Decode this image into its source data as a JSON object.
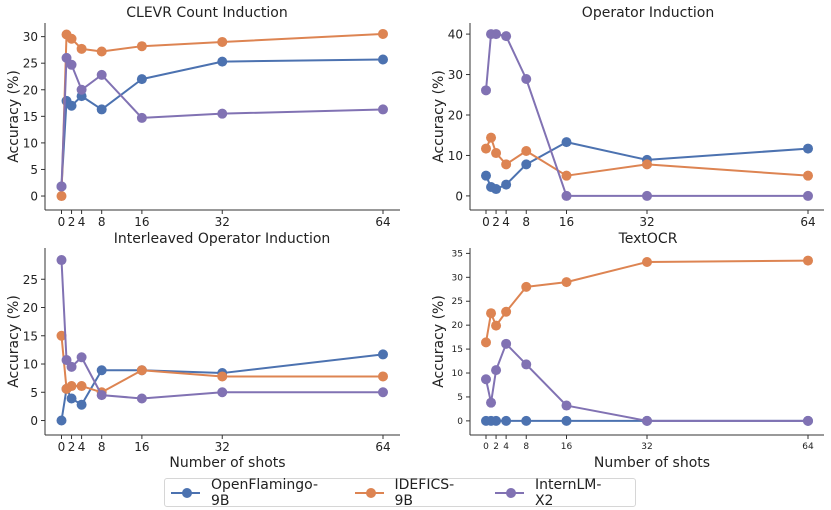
{
  "chart_data": [
    {
      "type": "line",
      "title": "CLEVR Count Induction",
      "xlabel": "",
      "ylabel": "Accuracy (%)",
      "x": [
        0,
        1,
        2,
        4,
        8,
        16,
        32,
        64
      ],
      "xticks": [
        0,
        2,
        4,
        8,
        16,
        32,
        64
      ],
      "yticks": [
        0,
        5,
        10,
        15,
        20,
        25,
        30
      ],
      "ylim": [
        -1.5,
        32
      ],
      "series": [
        {
          "name": "OpenFlamingo-9B",
          "values": [
            1.8,
            17.9,
            17.0,
            18.8,
            16.3,
            22.0,
            25.3,
            25.7
          ]
        },
        {
          "name": "IDEFICS-9B",
          "values": [
            0.0,
            30.4,
            29.6,
            27.7,
            27.2,
            28.2,
            29.0,
            30.5
          ]
        },
        {
          "name": "InternLM-X2",
          "values": [
            1.8,
            26.0,
            24.7,
            20.0,
            22.8,
            14.7,
            15.5,
            16.3
          ]
        }
      ]
    },
    {
      "type": "line",
      "title": "Operator Induction",
      "xlabel": "",
      "ylabel": "Accuracy (%)",
      "x": [
        0,
        1,
        2,
        4,
        8,
        16,
        32,
        64
      ],
      "xticks": [
        0,
        2,
        4,
        8,
        16,
        32,
        64
      ],
      "yticks": [
        0,
        10,
        20,
        30,
        40
      ],
      "ylim": [
        -2,
        42
      ],
      "series": [
        {
          "name": "OpenFlamingo-9B",
          "values": [
            5.0,
            2.2,
            1.7,
            2.8,
            7.8,
            13.3,
            8.9,
            11.7
          ]
        },
        {
          "name": "IDEFICS-9B",
          "values": [
            11.7,
            14.4,
            10.6,
            7.8,
            11.1,
            5.0,
            7.8,
            5.0
          ]
        },
        {
          "name": "InternLM-X2",
          "values": [
            26.1,
            40.0,
            40.0,
            39.5,
            28.9,
            0.0,
            0.0,
            0.0
          ]
        }
      ]
    },
    {
      "type": "line",
      "title": "Interleaved Operator Induction",
      "xlabel": "Number of shots",
      "ylabel": "Accuracy (%)",
      "x": [
        0,
        1,
        2,
        4,
        8,
        16,
        32,
        64
      ],
      "xticks": [
        0,
        2,
        4,
        8,
        16,
        32,
        64
      ],
      "yticks": [
        0,
        5,
        10,
        15,
        20,
        25
      ],
      "ylim": [
        -1.5,
        30
      ],
      "series": [
        {
          "name": "OpenFlamingo-9B",
          "values": [
            0.0,
            5.6,
            3.9,
            2.8,
            8.9,
            8.9,
            8.4,
            11.7
          ]
        },
        {
          "name": "IDEFICS-9B",
          "values": [
            15.0,
            5.6,
            6.1,
            6.1,
            5.0,
            8.9,
            7.8,
            7.8
          ]
        },
        {
          "name": "InternLM-X2",
          "values": [
            28.4,
            10.7,
            9.5,
            11.2,
            4.5,
            3.9,
            5.0,
            5.0
          ]
        }
      ]
    },
    {
      "type": "line",
      "title": "TextOCR",
      "xlabel": "Number of shots",
      "ylabel": "Accuracy (%)",
      "x": [
        0,
        1,
        2,
        4,
        8,
        16,
        32,
        64
      ],
      "xticks": [
        0,
        2,
        4,
        8,
        16,
        32,
        64
      ],
      "yticks": [
        0,
        5,
        10,
        15,
        20,
        25,
        30,
        35
      ],
      "ylim": [
        -1.7,
        35.5
      ],
      "series": [
        {
          "name": "OpenFlamingo-9B",
          "values": [
            0.0,
            0.0,
            0.0,
            0.0,
            0.0,
            0.0,
            0.0,
            0.0
          ]
        },
        {
          "name": "IDEFICS-9B",
          "values": [
            16.4,
            22.5,
            19.9,
            22.8,
            28.0,
            29.0,
            33.2,
            33.5
          ]
        },
        {
          "name": "InternLM-X2",
          "values": [
            8.7,
            3.8,
            10.6,
            16.1,
            11.8,
            3.2,
            0.0,
            0.0
          ]
        }
      ]
    }
  ],
  "legend": {
    "placement": "bottom-center",
    "items": [
      {
        "label": "OpenFlamingo-9B",
        "color": "#4C72B0"
      },
      {
        "label": "IDEFICS-9B",
        "color": "#DD8452"
      },
      {
        "label": "InternLM-X2",
        "color": "#8172B3"
      }
    ]
  },
  "colors": {
    "OpenFlamingo-9B": "#4C72B0",
    "IDEFICS-9B": "#DD8452",
    "InternLM-X2": "#8172B3"
  }
}
